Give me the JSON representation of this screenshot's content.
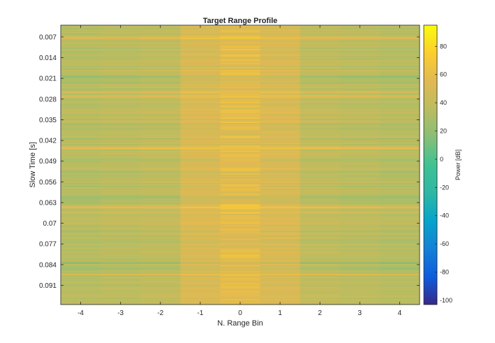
{
  "chart_data": {
    "type": "heatmap",
    "title": "Target Range Profile",
    "xlabel": "N. Range Bin",
    "ylabel": "Slow Time [s]",
    "colorbar_label": "Power [dB]",
    "colormap": "parula",
    "x_bins": [
      -4,
      -3,
      -2,
      -1,
      0,
      1,
      2,
      3,
      4
    ],
    "x_ticks": [
      -4,
      -3,
      -2,
      -1,
      0,
      1,
      2,
      3,
      4
    ],
    "y_ticks": [
      0.007,
      0.014,
      0.021,
      0.028,
      0.035,
      0.042,
      0.049,
      0.056,
      0.063,
      0.07,
      0.077,
      0.084,
      0.091
    ],
    "y_tick_labels": [
      "0.007",
      "0.014",
      "0.021",
      "0.028",
      "0.035",
      "0.042",
      "0.049",
      "0.056",
      "0.063",
      "0.07",
      "0.077",
      "0.084",
      "0.091"
    ],
    "ylim": [
      0.003,
      0.0975
    ],
    "y_reversed": true,
    "colorbar_ticks": [
      -100,
      -80,
      -60,
      -40,
      -20,
      0,
      20,
      40,
      60,
      80
    ],
    "clim": [
      -103,
      95
    ],
    "base_power_by_bin_db": [
      34,
      36,
      38,
      50,
      56,
      50,
      38,
      36,
      34
    ],
    "horizontal_bands": [
      {
        "slow_time": 0.0073,
        "delta_db": 14
      },
      {
        "slow_time": 0.0205,
        "delta_db": -14
      },
      {
        "slow_time": 0.0225,
        "delta_db": -8
      },
      {
        "slow_time": 0.0255,
        "delta_db": 10
      },
      {
        "slow_time": 0.027,
        "delta_db": 16
      },
      {
        "slow_time": 0.0415,
        "delta_db": -14
      },
      {
        "slow_time": 0.0445,
        "delta_db": 20
      },
      {
        "slow_time": 0.061,
        "delta_db": -14
      },
      {
        "slow_time": 0.0645,
        "delta_db": 16
      },
      {
        "slow_time": 0.0665,
        "delta_db": 10
      },
      {
        "slow_time": 0.0833,
        "delta_db": -16
      },
      {
        "slow_time": 0.0853,
        "delta_db": -8
      },
      {
        "slow_time": 0.0873,
        "delta_db": 16
      }
    ]
  }
}
